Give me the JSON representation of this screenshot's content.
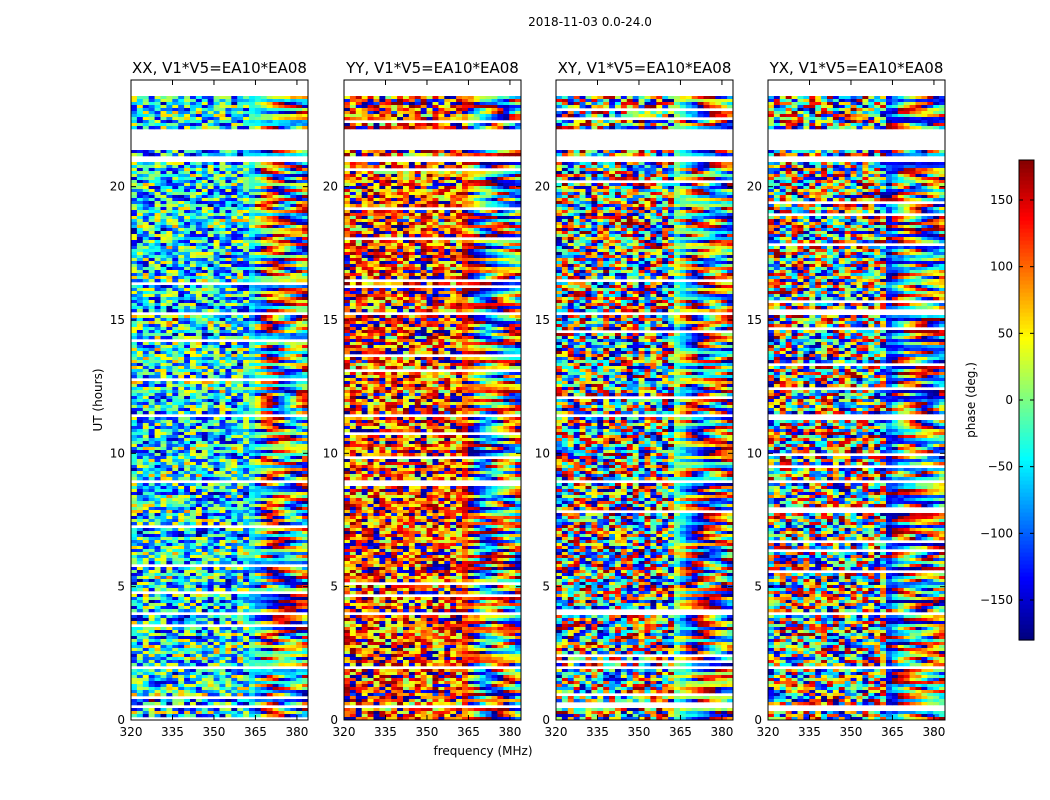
{
  "chart_data": {
    "type": "heatmap",
    "suptitle": "2018-11-03 0.0-24.0",
    "xlabel": "frequency (MHz)",
    "ylabel": "UT (hours)",
    "xlim": [
      320,
      384
    ],
    "ylim": [
      0,
      24
    ],
    "xticks": [
      320,
      335,
      350,
      365,
      380
    ],
    "yticks": [
      0,
      5,
      10,
      15,
      20
    ],
    "panels": [
      {
        "title": "XX, V1*V5=EA10*EA08",
        "base_phase": -45,
        "noise": "medium"
      },
      {
        "title": "YY, V1*V5=EA10*EA08",
        "base_phase": 120,
        "noise": "medium"
      },
      {
        "title": "XY, V1*V5=EA10*EA08",
        "base_phase": 0,
        "noise": "high"
      },
      {
        "title": "YX, V1*V5=EA10*EA08",
        "base_phase": -130,
        "noise": "high"
      }
    ],
    "flagged_gaps_hours": [
      [
        21.4,
        22.2
      ],
      [
        20.95,
        21.15
      ],
      [
        15.2,
        15.35
      ],
      [
        11.45,
        11.55
      ],
      [
        8.95,
        9.1
      ],
      [
        4.0,
        4.1
      ],
      [
        2.0,
        2.1
      ],
      [
        0.5,
        0.6
      ]
    ],
    "data_start_hour": 0.05,
    "data_end_hour": 23.4,
    "colorbar": {
      "label": "phase (deg.)",
      "range": [
        -180,
        180
      ],
      "ticks": [
        -150,
        -100,
        -50,
        0,
        50,
        100,
        150
      ],
      "tick_labels": [
        "−150",
        "−100",
        "−50",
        "0",
        "50",
        "100",
        "150"
      ],
      "colormap": "jet"
    }
  }
}
